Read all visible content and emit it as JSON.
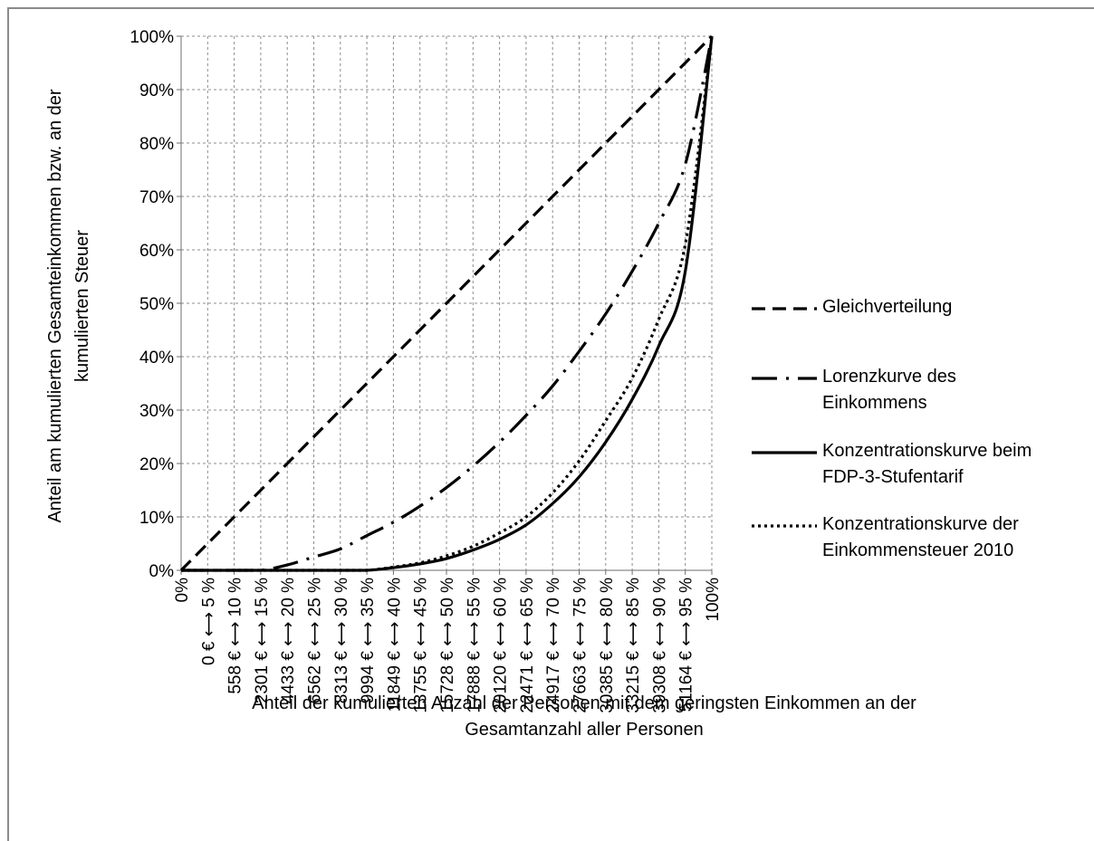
{
  "chart_data": {
    "type": "line",
    "title": "",
    "xlabel": "Anteil der kumulierten Anzahl der Personen mit dem geringsten Einkommen an der Gesamtanzahl aller Personen",
    "xlabel_lines": [
      "Anteil der kumulierten Anzahl der Personen mit dem geringsten Einkommen an der",
      "Gesamtanzahl aller Personen"
    ],
    "ylabel": "Anteil am kumulierten Gesamteinkommen bzw. an der kumulierten Steuer",
    "ylabel_lines": [
      "Anteil am kumulierten Gesamteinkommen bzw. an der",
      "kumulierten Steuer"
    ],
    "ylim": [
      0,
      1
    ],
    "y_ticks": [
      "0%",
      "10%",
      "20%",
      "30%",
      "40%",
      "50%",
      "60%",
      "70%",
      "80%",
      "90%",
      "100%"
    ],
    "categories": [
      "0%",
      "0 € ⟷ 5 %",
      "558 € ⟷ 10 %",
      "2301 € ⟷ 15 %",
      "4433 € ⟷ 20 %",
      "6562 € ⟷ 25 %",
      "8313 € ⟷ 30 %",
      "9994 € ⟷ 35 %",
      "11849 € ⟷ 40 %",
      "13755 € ⟷ 45 %",
      "15728 € ⟷ 50 %",
      "17888 € ⟷ 55 %",
      "20120 € ⟷ 60 %",
      "22471 € ⟷ 65 %",
      "24917 € ⟷ 70 %",
      "27663 € ⟷ 75 %",
      "30385 € ⟷ 80 %",
      "33215 € ⟷ 85 %",
      "39308 € ⟷ 90 %",
      "51164 € ⟷ 95 %",
      "100%"
    ],
    "grid": true,
    "legend_position": "right",
    "series": [
      {
        "name": "Gleichverteilung",
        "style": "dashed",
        "values": [
          0,
          0.05,
          0.1,
          0.15,
          0.2,
          0.25,
          0.3,
          0.35,
          0.4,
          0.45,
          0.5,
          0.55,
          0.6,
          0.65,
          0.7,
          0.75,
          0.8,
          0.85,
          0.9,
          0.95,
          1.0
        ]
      },
      {
        "name": "Lorenzkurve des Einkommens",
        "style": "dashdot",
        "values": [
          0,
          0,
          0,
          0,
          0.01,
          0.025,
          0.04,
          0.065,
          0.09,
          0.12,
          0.155,
          0.195,
          0.24,
          0.29,
          0.345,
          0.41,
          0.48,
          0.56,
          0.65,
          0.76,
          1.0
        ]
      },
      {
        "name": "Konzentrationskurve beim FDP-3-Stufentarif",
        "style": "solid",
        "values": [
          0,
          0,
          0,
          0,
          0,
          0,
          0,
          0,
          0.005,
          0.012,
          0.022,
          0.038,
          0.058,
          0.085,
          0.125,
          0.175,
          0.24,
          0.32,
          0.42,
          0.56,
          1.0
        ]
      },
      {
        "name": "Konzentrationskurve der Einkommensteuer 2010",
        "style": "dotted",
        "values": [
          0,
          0,
          0,
          0,
          0,
          0,
          0,
          0,
          0.006,
          0.014,
          0.027,
          0.045,
          0.07,
          0.1,
          0.145,
          0.205,
          0.28,
          0.36,
          0.47,
          0.61,
          1.0
        ]
      }
    ],
    "legend_label_lines": [
      [
        "Gleichverteilung"
      ],
      [
        "Lorenzkurve des",
        "Einkommens"
      ],
      [
        "Konzentrationskurve beim",
        "FDP-3-Stufentarif"
      ],
      [
        "Konzentrationskurve der",
        "Einkommensteuer 2010"
      ]
    ]
  }
}
